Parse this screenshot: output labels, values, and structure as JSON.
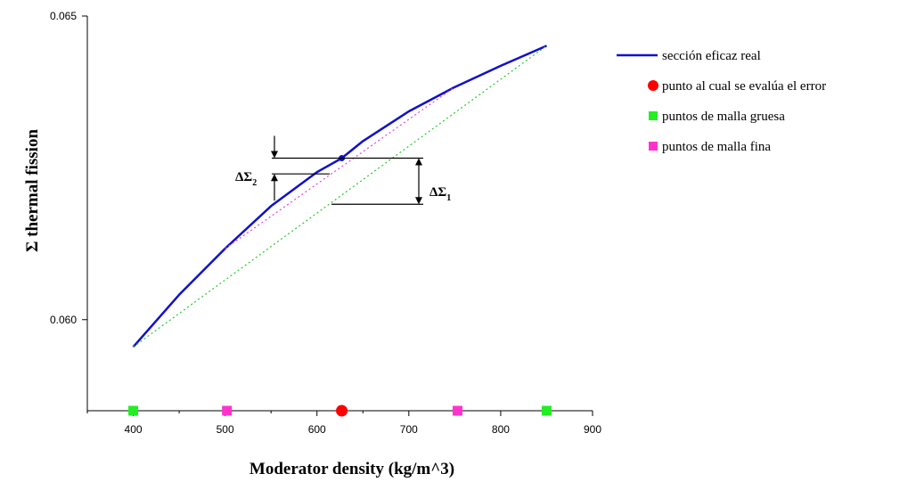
{
  "chart_data": {
    "type": "line",
    "title": "",
    "xlabel": "Moderator density (kg/m^3)",
    "ylabel": "Σ thermal fission",
    "xlim": [
      350,
      900
    ],
    "ylim": [
      0.0585,
      0.065
    ],
    "x_ticks": [
      "400",
      "500",
      "600",
      "700",
      "800",
      "900"
    ],
    "y_ticks": [
      "0.060",
      "0.065"
    ],
    "grid": false,
    "legend_position": "right",
    "series": [
      {
        "name": "sección eficaz real",
        "style": "solid",
        "color": "#1010cc",
        "x": [
          400,
          450,
          500,
          550,
          600,
          627,
          650,
          700,
          750,
          800,
          850
        ],
        "y": [
          0.05955,
          0.06041,
          0.06117,
          0.06187,
          0.06243,
          0.06266,
          0.06294,
          0.06343,
          0.06383,
          0.06418,
          0.06451
        ]
      },
      {
        "name": "",
        "style": "dotted",
        "color": "#e040e0",
        "x": [
          500,
          750
        ],
        "y": [
          0.06117,
          0.06383
        ]
      },
      {
        "name": "",
        "style": "dotted",
        "color": "#22cc22",
        "x": [
          400,
          850
        ],
        "y": [
          0.05955,
          0.06451
        ]
      }
    ],
    "markers": [
      {
        "name": "punto al cual se evalúa el error",
        "shape": "circle",
        "color": "#ff0000",
        "x": [
          627
        ]
      },
      {
        "name": "puntos de malla gruesa",
        "shape": "square",
        "color": "#22ee22",
        "x": [
          400,
          850
        ]
      },
      {
        "name": "puntos de malla fina",
        "shape": "square",
        "color": "#ff33cc",
        "x": [
          502,
          753
        ]
      }
    ],
    "annotations": {
      "delta1": {
        "symbol": "ΔΣ",
        "subscript": "1"
      },
      "delta2": {
        "symbol": "ΔΣ",
        "subscript": "2"
      }
    }
  },
  "colors": {
    "real": "#1010cc",
    "fine_line": "#e040e0",
    "coarse_line": "#22cc22",
    "error_point": "#ff0000",
    "coarse_point": "#22ee22",
    "fine_point": "#ff33cc"
  }
}
